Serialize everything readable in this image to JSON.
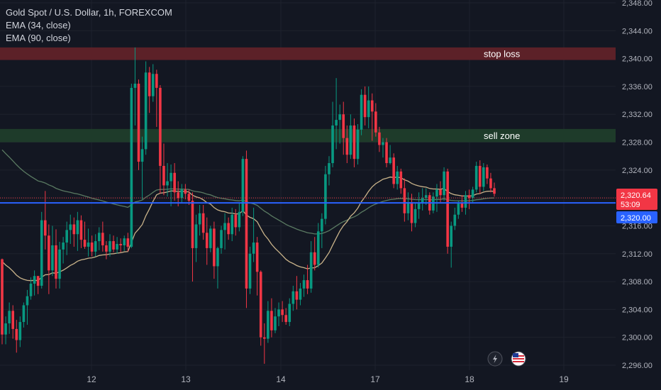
{
  "legend": {
    "symbol": "Gold Spot / U.S. Dollar, 1h, FOREXCOM",
    "ema1": "EMA (34, close)",
    "ema2": "EMA (90, close)"
  },
  "zones": {
    "stop_loss": {
      "label": "stop loss",
      "from": 2339.8,
      "to": 2341.6,
      "color": "#5c2128"
    },
    "sell_zone": {
      "label": "sell zone",
      "from": 2328.0,
      "to": 2329.9,
      "color": "#1e3b2a"
    }
  },
  "price_tags": {
    "last_price": "2,320.64",
    "countdown": "53:09",
    "level": "2,320.00",
    "last_color": "#f23645",
    "level_color": "#2962ff"
  },
  "header_icons": {
    "lightning": "lightning-icon",
    "flag": "us-flag-icon"
  },
  "colors": {
    "up": "#089981",
    "down": "#f23645",
    "ema34": "#c9b38a",
    "ema90": "#5a7a62",
    "hline": "#2962ff"
  },
  "chart_data": {
    "type": "candlestick",
    "title": "Gold Spot / U.S. Dollar, 1h, FOREXCOM",
    "ylim": [
      2296,
      2348
    ],
    "yticks": [
      "2,296.00",
      "2,300.00",
      "2,304.00",
      "2,308.00",
      "2,312.00",
      "2,316.00",
      "2,320.00",
      "2,324.00",
      "2,328.00",
      "2,332.00",
      "2,336.00",
      "2,340.00",
      "2,344.00",
      "2,348.00"
    ],
    "xticks": [
      "12",
      "13",
      "14",
      "17",
      "18",
      "19"
    ],
    "horizontal_line": 2320.0,
    "ohlc": [
      [
        2311.2,
        2311.3,
        2299.0,
        2300.4
      ],
      [
        2300.4,
        2303.0,
        2299.0,
        2302.0
      ],
      [
        2302.0,
        2305.0,
        2300.5,
        2303.8
      ],
      [
        2303.8,
        2304.6,
        2299.8,
        2301.2
      ],
      [
        2301.2,
        2302.5,
        2297.8,
        2299.6
      ],
      [
        2299.6,
        2303.0,
        2298.6,
        2302.2
      ],
      [
        2302.2,
        2305.0,
        2301.4,
        2304.6
      ],
      [
        2304.6,
        2306.8,
        2301.8,
        2305.9
      ],
      [
        2305.9,
        2308.6,
        2305.4,
        2307.7
      ],
      [
        2307.7,
        2309.6,
        2306.0,
        2308.8
      ],
      [
        2308.8,
        2308.8,
        2306.2,
        2307.4
      ],
      [
        2307.4,
        2318.0,
        2307.0,
        2316.8
      ],
      [
        2316.8,
        2321.0,
        2312.6,
        2314.6
      ],
      [
        2314.6,
        2316.2,
        2306.2,
        2309.6
      ],
      [
        2309.6,
        2316.0,
        2308.8,
        2313.2
      ],
      [
        2313.2,
        2315.5,
        2307.0,
        2308.4
      ],
      [
        2308.4,
        2313.7,
        2307.0,
        2312.6
      ],
      [
        2312.6,
        2314.4,
        2310.6,
        2313.6
      ],
      [
        2313.6,
        2316.6,
        2311.8,
        2315.4
      ],
      [
        2315.4,
        2317.6,
        2313.4,
        2316.2
      ],
      [
        2316.2,
        2317.2,
        2313.0,
        2314.8
      ],
      [
        2314.8,
        2318.0,
        2312.4,
        2316.8
      ],
      [
        2316.8,
        2317.5,
        2312.8,
        2314.0
      ],
      [
        2314.0,
        2316.6,
        2312.7,
        2313.0
      ],
      [
        2313.0,
        2315.6,
        2311.6,
        2313.6
      ],
      [
        2313.6,
        2314.6,
        2311.6,
        2312.3
      ],
      [
        2312.3,
        2314.8,
        2311.6,
        2313.8
      ],
      [
        2313.8,
        2315.8,
        2312.5,
        2315.0
      ],
      [
        2315.0,
        2316.6,
        2312.3,
        2313.2
      ],
      [
        2313.2,
        2313.8,
        2311.2,
        2312.3
      ],
      [
        2312.3,
        2314.8,
        2311.6,
        2313.8
      ],
      [
        2313.8,
        2314.6,
        2312.2,
        2312.6
      ],
      [
        2312.6,
        2314.4,
        2312.0,
        2313.4
      ],
      [
        2313.4,
        2314.2,
        2312.2,
        2313.2
      ],
      [
        2313.2,
        2314.6,
        2312.4,
        2314.2
      ],
      [
        2314.2,
        2315.0,
        2312.3,
        2313.0
      ],
      [
        2313.0,
        2336.4,
        2312.8,
        2335.8
      ],
      [
        2335.8,
        2341.6,
        2330.4,
        2336.4
      ],
      [
        2336.4,
        2337.0,
        2324.0,
        2325.2
      ],
      [
        2325.2,
        2328.8,
        2319.8,
        2327.0
      ],
      [
        2327.0,
        2339.6,
        2326.2,
        2338.0
      ],
      [
        2338.0,
        2338.8,
        2332.2,
        2334.6
      ],
      [
        2334.6,
        2339.2,
        2333.8,
        2337.8
      ],
      [
        2337.8,
        2338.4,
        2330.2,
        2335.8
      ],
      [
        2335.8,
        2336.2,
        2320.6,
        2324.6
      ],
      [
        2324.6,
        2327.8,
        2320.4,
        2321.8
      ],
      [
        2321.8,
        2325.0,
        2320.2,
        2322.4
      ],
      [
        2322.4,
        2324.8,
        2318.8,
        2323.6
      ],
      [
        2323.6,
        2325.0,
        2319.6,
        2320.8
      ],
      [
        2320.8,
        2322.4,
        2318.8,
        2320.0
      ],
      [
        2320.0,
        2322.0,
        2319.2,
        2321.2
      ],
      [
        2321.2,
        2322.0,
        2319.8,
        2320.6
      ],
      [
        2320.6,
        2321.2,
        2319.0,
        2319.6
      ],
      [
        2319.6,
        2320.8,
        2308.0,
        2312.8
      ],
      [
        2312.8,
        2317.6,
        2310.8,
        2316.2
      ],
      [
        2316.2,
        2319.0,
        2314.6,
        2317.8
      ],
      [
        2317.8,
        2319.0,
        2314.0,
        2315.0
      ],
      [
        2315.0,
        2317.2,
        2310.4,
        2312.8
      ],
      [
        2312.8,
        2316.0,
        2312.2,
        2315.6
      ],
      [
        2315.6,
        2316.6,
        2308.4,
        2310.2
      ],
      [
        2310.2,
        2313.0,
        2307.0,
        2312.8
      ],
      [
        2312.8,
        2316.0,
        2312.0,
        2315.4
      ],
      [
        2315.4,
        2317.8,
        2312.6,
        2316.4
      ],
      [
        2316.4,
        2317.2,
        2314.0,
        2314.8
      ],
      [
        2314.8,
        2318.6,
        2313.8,
        2317.6
      ],
      [
        2317.6,
        2318.4,
        2314.6,
        2315.8
      ],
      [
        2315.8,
        2319.2,
        2315.2,
        2318.0
      ],
      [
        2318.0,
        2326.0,
        2317.4,
        2325.6
      ],
      [
        2325.6,
        2326.8,
        2304.2,
        2307.0
      ],
      [
        2307.0,
        2313.0,
        2306.2,
        2312.0
      ],
      [
        2312.0,
        2318.6,
        2310.8,
        2313.6
      ],
      [
        2313.6,
        2314.4,
        2306.0,
        2309.4
      ],
      [
        2309.4,
        2309.6,
        2298.8,
        2300.0
      ],
      [
        2300.0,
        2302.0,
        2296.2,
        2299.8
      ],
      [
        2299.8,
        2305.2,
        2299.2,
        2303.8
      ],
      [
        2303.8,
        2305.6,
        2300.0,
        2301.0
      ],
      [
        2301.0,
        2304.2,
        2300.6,
        2303.0
      ],
      [
        2303.0,
        2305.0,
        2301.6,
        2304.0
      ],
      [
        2304.0,
        2305.2,
        2302.2,
        2303.2
      ],
      [
        2303.2,
        2304.2,
        2301.8,
        2302.2
      ],
      [
        2302.2,
        2305.6,
        2301.6,
        2304.8
      ],
      [
        2304.8,
        2307.4,
        2303.8,
        2306.6
      ],
      [
        2306.6,
        2308.8,
        2304.0,
        2305.4
      ],
      [
        2305.4,
        2307.8,
        2304.6,
        2307.0
      ],
      [
        2307.0,
        2309.0,
        2305.8,
        2308.2
      ],
      [
        2308.2,
        2310.4,
        2306.2,
        2307.0
      ],
      [
        2307.0,
        2313.8,
        2306.4,
        2312.2
      ],
      [
        2312.2,
        2314.4,
        2309.6,
        2310.4
      ],
      [
        2310.4,
        2316.4,
        2310.0,
        2315.2
      ],
      [
        2315.2,
        2317.8,
        2312.8,
        2317.0
      ],
      [
        2317.0,
        2324.6,
        2316.2,
        2323.4
      ],
      [
        2323.4,
        2326.0,
        2321.8,
        2325.0
      ],
      [
        2325.0,
        2333.8,
        2324.4,
        2330.4
      ],
      [
        2330.4,
        2337.2,
        2327.0,
        2331.2
      ],
      [
        2331.2,
        2333.4,
        2327.8,
        2332.0
      ],
      [
        2332.0,
        2333.8,
        2326.2,
        2328.6
      ],
      [
        2328.6,
        2330.4,
        2325.0,
        2326.2
      ],
      [
        2326.2,
        2332.0,
        2325.6,
        2330.4
      ],
      [
        2330.4,
        2331.4,
        2324.4,
        2325.6
      ],
      [
        2325.6,
        2330.6,
        2324.8,
        2329.8
      ],
      [
        2329.8,
        2335.6,
        2329.0,
        2334.8
      ],
      [
        2334.8,
        2336.0,
        2330.4,
        2331.6
      ],
      [
        2331.6,
        2336.0,
        2330.0,
        2334.0
      ],
      [
        2334.0,
        2335.0,
        2328.2,
        2332.4
      ],
      [
        2332.4,
        2333.6,
        2328.8,
        2329.4
      ],
      [
        2329.4,
        2330.2,
        2326.6,
        2327.6
      ],
      [
        2327.6,
        2328.6,
        2325.8,
        2328.0
      ],
      [
        2328.0,
        2328.6,
        2324.4,
        2325.0
      ],
      [
        2325.0,
        2327.6,
        2324.8,
        2325.8
      ],
      [
        2325.8,
        2326.4,
        2321.4,
        2322.0
      ],
      [
        2322.0,
        2324.6,
        2321.2,
        2323.8
      ],
      [
        2323.8,
        2324.2,
        2320.6,
        2321.4
      ],
      [
        2321.4,
        2322.8,
        2316.6,
        2317.8
      ],
      [
        2317.8,
        2320.8,
        2316.8,
        2319.4
      ],
      [
        2319.4,
        2320.6,
        2315.2,
        2316.4
      ],
      [
        2316.4,
        2319.2,
        2315.8,
        2318.4
      ],
      [
        2318.4,
        2320.8,
        2317.0,
        2319.2
      ],
      [
        2319.2,
        2321.4,
        2318.2,
        2320.0
      ],
      [
        2320.0,
        2321.4,
        2319.0,
        2320.4
      ],
      [
        2320.4,
        2320.8,
        2317.6,
        2318.2
      ],
      [
        2318.2,
        2320.8,
        2317.8,
        2320.2
      ],
      [
        2320.2,
        2322.0,
        2318.0,
        2321.2
      ],
      [
        2321.2,
        2322.4,
        2319.4,
        2320.4
      ],
      [
        2320.4,
        2324.4,
        2319.6,
        2323.8
      ],
      [
        2323.8,
        2324.2,
        2312.0,
        2313.0
      ],
      [
        2313.0,
        2316.6,
        2310.0,
        2316.0
      ],
      [
        2316.0,
        2318.6,
        2315.4,
        2317.6
      ],
      [
        2317.6,
        2319.6,
        2317.0,
        2319.2
      ],
      [
        2319.2,
        2320.4,
        2318.0,
        2318.6
      ],
      [
        2318.6,
        2321.0,
        2317.6,
        2320.4
      ],
      [
        2320.4,
        2321.2,
        2318.4,
        2320.0
      ],
      [
        2320.0,
        2321.6,
        2319.4,
        2321.2
      ],
      [
        2321.2,
        2325.2,
        2320.8,
        2324.6
      ],
      [
        2324.6,
        2325.4,
        2320.6,
        2321.6
      ],
      [
        2321.6,
        2325.0,
        2321.0,
        2324.4
      ],
      [
        2324.4,
        2324.8,
        2322.0,
        2322.8
      ],
      [
        2322.8,
        2323.6,
        2320.8,
        2321.4
      ],
      [
        2321.4,
        2322.2,
        2320.2,
        2320.6
      ]
    ],
    "ema34_last": 2321.3,
    "ema90_last": 2320.3
  }
}
